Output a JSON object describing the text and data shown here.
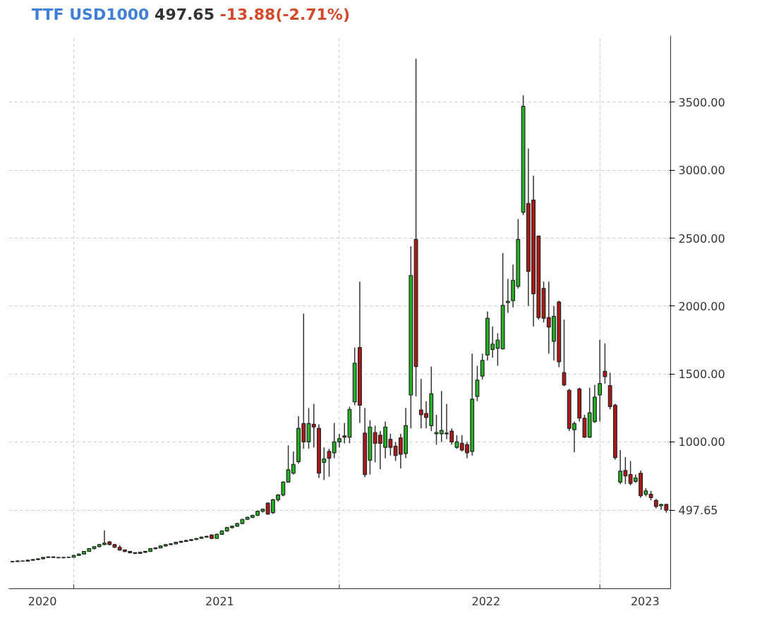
{
  "chart_data": {
    "type": "candlestick",
    "title": "TTF USD1000",
    "annotations": [
      "497.65",
      "-13.88(-2.71%)"
    ],
    "x": [
      "2020-09-21",
      "2020-09-28",
      "2020-10-05",
      "2020-10-12",
      "2020-10-19",
      "2020-10-26",
      "2020-11-02",
      "2020-11-09",
      "2020-11-16",
      "2020-11-23",
      "2020-11-30",
      "2020-12-07",
      "2020-12-14",
      "2020-12-21",
      "2020-12-28",
      "2021-01-04",
      "2021-01-11",
      "2021-01-18",
      "2021-01-25",
      "2021-02-01",
      "2021-02-08",
      "2021-02-15",
      "2021-02-22",
      "2021-03-01",
      "2021-03-08",
      "2021-03-15",
      "2021-03-22",
      "2021-03-29",
      "2021-04-05",
      "2021-04-12",
      "2021-04-19",
      "2021-04-26",
      "2021-05-03",
      "2021-05-10",
      "2021-05-17",
      "2021-05-24",
      "2021-05-31",
      "2021-06-07",
      "2021-06-14",
      "2021-06-21",
      "2021-06-28",
      "2021-07-05",
      "2021-07-12",
      "2021-07-19",
      "2021-07-26",
      "2021-08-02",
      "2021-08-09",
      "2021-08-16",
      "2021-08-23",
      "2021-08-30",
      "2021-09-06",
      "2021-09-13",
      "2021-09-20",
      "2021-09-27",
      "2021-10-04",
      "2021-10-11",
      "2021-10-18",
      "2021-10-25",
      "2021-11-01",
      "2021-11-08",
      "2021-11-15",
      "2021-11-22",
      "2021-11-29",
      "2021-12-06",
      "2021-12-13",
      "2021-12-20",
      "2021-12-27",
      "2022-01-03",
      "2022-01-10",
      "2022-01-17",
      "2022-01-24",
      "2022-01-31",
      "2022-02-07",
      "2022-02-14",
      "2022-02-21",
      "2022-02-28",
      "2022-03-07",
      "2022-03-14",
      "2022-03-21",
      "2022-03-28",
      "2022-04-04",
      "2022-04-11",
      "2022-04-18",
      "2022-04-25",
      "2022-05-02",
      "2022-05-09",
      "2022-05-16",
      "2022-05-23",
      "2022-05-30",
      "2022-06-06",
      "2022-06-13",
      "2022-06-20",
      "2022-06-27",
      "2022-07-04",
      "2022-07-11",
      "2022-07-18",
      "2022-07-25",
      "2022-08-01",
      "2022-08-08",
      "2022-08-15",
      "2022-08-22",
      "2022-08-29",
      "2022-09-05",
      "2022-09-12",
      "2022-09-19",
      "2022-09-26",
      "2022-10-03",
      "2022-10-10",
      "2022-10-17",
      "2022-10-24",
      "2022-10-31",
      "2022-11-07",
      "2022-11-14",
      "2022-11-21",
      "2022-11-28",
      "2022-12-05",
      "2022-12-12",
      "2022-12-19",
      "2022-12-26",
      "2023-01-02",
      "2023-01-09",
      "2023-01-16",
      "2023-01-23",
      "2023-01-30",
      "2023-02-06",
      "2023-02-13",
      "2023-02-20",
      "2023-02-27",
      "2023-03-06"
    ],
    "ohlc": [
      [
        118,
        124,
        114,
        120
      ],
      [
        120,
        128,
        117,
        125
      ],
      [
        125,
        127,
        119,
        123
      ],
      [
        123,
        133,
        121,
        130
      ],
      [
        130,
        138,
        128,
        135
      ],
      [
        135,
        143,
        132,
        140
      ],
      [
        140,
        153,
        138,
        150
      ],
      [
        150,
        158,
        147,
        155
      ],
      [
        155,
        157,
        146,
        150
      ],
      [
        150,
        152,
        144,
        148
      ],
      [
        148,
        153,
        145,
        150
      ],
      [
        150,
        155,
        147,
        152
      ],
      [
        152,
        168,
        150,
        165
      ],
      [
        165,
        178,
        162,
        175
      ],
      [
        175,
        198,
        172,
        195
      ],
      [
        195,
        218,
        192,
        215
      ],
      [
        215,
        233,
        210,
        230
      ],
      [
        230,
        248,
        226,
        245
      ],
      [
        245,
        350,
        240,
        255
      ],
      [
        265,
        272,
        240,
        245
      ],
      [
        245,
        250,
        220,
        225
      ],
      [
        225,
        240,
        200,
        205
      ],
      [
        205,
        210,
        190,
        195
      ],
      [
        195,
        198,
        180,
        185
      ],
      [
        185,
        188,
        175,
        180
      ],
      [
        180,
        192,
        178,
        188
      ],
      [
        188,
        199,
        185,
        195
      ],
      [
        195,
        218,
        192,
        215
      ],
      [
        215,
        225,
        210,
        220
      ],
      [
        220,
        238,
        218,
        235
      ],
      [
        235,
        248,
        230,
        245
      ],
      [
        245,
        255,
        240,
        250
      ],
      [
        250,
        266,
        247,
        262
      ],
      [
        262,
        272,
        258,
        268
      ],
      [
        268,
        279,
        264,
        275
      ],
      [
        275,
        286,
        271,
        282
      ],
      [
        282,
        294,
        278,
        290
      ],
      [
        290,
        304,
        286,
        300
      ],
      [
        300,
        310,
        296,
        305
      ],
      [
        315,
        320,
        285,
        290
      ],
      [
        290,
        325,
        288,
        320
      ],
      [
        320,
        350,
        316,
        345
      ],
      [
        345,
        375,
        340,
        370
      ],
      [
        370,
        385,
        362,
        380
      ],
      [
        380,
        405,
        376,
        400
      ],
      [
        400,
        435,
        395,
        430
      ],
      [
        430,
        450,
        425,
        445
      ],
      [
        445,
        465,
        440,
        460
      ],
      [
        460,
        495,
        455,
        490
      ],
      [
        490,
        510,
        480,
        505
      ],
      [
        550,
        555,
        465,
        470
      ],
      [
        480,
        580,
        470,
        575
      ],
      [
        575,
        615,
        560,
        610
      ],
      [
        610,
        710,
        600,
        705
      ],
      [
        705,
        975,
        700,
        795
      ],
      [
        770,
        930,
        760,
        835
      ],
      [
        855,
        1190,
        840,
        1100
      ],
      [
        1135,
        1945,
        950,
        1000
      ],
      [
        1000,
        1250,
        950,
        1135
      ],
      [
        1130,
        1280,
        960,
        1110
      ],
      [
        1100,
        1130,
        735,
        770
      ],
      [
        850,
        960,
        720,
        875
      ],
      [
        930,
        950,
        745,
        880
      ],
      [
        920,
        1140,
        880,
        1000
      ],
      [
        1000,
        1060,
        960,
        1025
      ],
      [
        1045,
        1140,
        990,
        1035
      ],
      [
        1035,
        1260,
        990,
        1240
      ],
      [
        1295,
        1695,
        1270,
        1580
      ],
      [
        1695,
        2180,
        1140,
        1270
      ],
      [
        1065,
        1250,
        740,
        760
      ],
      [
        865,
        1160,
        760,
        1110
      ],
      [
        1070,
        1120,
        850,
        990
      ],
      [
        1050,
        1080,
        800,
        990
      ],
      [
        960,
        1150,
        880,
        1110
      ],
      [
        1020,
        1060,
        900,
        960
      ],
      [
        970,
        1000,
        860,
        900
      ],
      [
        1030,
        1060,
        805,
        910
      ],
      [
        915,
        1250,
        880,
        1120
      ],
      [
        1345,
        2440,
        1100,
        2225
      ],
      [
        2490,
        3820,
        1335,
        1555
      ],
      [
        1235,
        1465,
        1100,
        1200
      ],
      [
        1210,
        1300,
        1100,
        1180
      ],
      [
        1120,
        1555,
        1080,
        1355
      ],
      [
        1060,
        1200,
        980,
        1070
      ],
      [
        1060,
        1375,
        1000,
        1085
      ],
      [
        1065,
        1280,
        1020,
        1060
      ],
      [
        1080,
        1100,
        980,
        1000
      ],
      [
        960,
        1050,
        950,
        1000
      ],
      [
        990,
        1050,
        930,
        940
      ],
      [
        980,
        1000,
        880,
        920
      ],
      [
        930,
        1650,
        900,
        1315
      ],
      [
        1335,
        1560,
        1300,
        1455
      ],
      [
        1485,
        1650,
        1460,
        1600
      ],
      [
        1640,
        1960,
        1600,
        1910
      ],
      [
        1680,
        1850,
        1620,
        1720
      ],
      [
        1690,
        1800,
        1560,
        1750
      ],
      [
        1685,
        2390,
        1680,
        2005
      ],
      [
        2025,
        2200,
        1950,
        2035
      ],
      [
        2040,
        2305,
        1990,
        2190
      ],
      [
        2145,
        2640,
        2130,
        2490
      ],
      [
        2690,
        3550,
        2670,
        3470
      ],
      [
        2755,
        3160,
        2000,
        2255
      ],
      [
        2780,
        2960,
        1850,
        2090
      ],
      [
        2515,
        2520,
        1900,
        1915
      ],
      [
        2130,
        2180,
        1880,
        1910
      ],
      [
        1915,
        2180,
        1650,
        1845
      ],
      [
        1740,
        2000,
        1600,
        1925
      ],
      [
        2030,
        2040,
        1550,
        1590
      ],
      [
        1510,
        1900,
        1410,
        1420
      ],
      [
        1380,
        1390,
        1080,
        1100
      ],
      [
        1090,
        1150,
        925,
        1135
      ],
      [
        1390,
        1400,
        1150,
        1175
      ],
      [
        1175,
        1200,
        1030,
        1035
      ],
      [
        1035,
        1400,
        1030,
        1215
      ],
      [
        1150,
        1420,
        1140,
        1330
      ],
      [
        1345,
        1750,
        1150,
        1430
      ],
      [
        1520,
        1725,
        1430,
        1480
      ],
      [
        1415,
        1510,
        1240,
        1260
      ],
      [
        1270,
        1280,
        870,
        885
      ],
      [
        705,
        940,
        690,
        785
      ],
      [
        790,
        890,
        690,
        750
      ],
      [
        760,
        860,
        680,
        695
      ],
      [
        710,
        760,
        700,
        735
      ],
      [
        770,
        790,
        590,
        605
      ],
      [
        615,
        660,
        600,
        640
      ],
      [
        615,
        640,
        570,
        590
      ],
      [
        570,
        580,
        510,
        525
      ],
      [
        530,
        545,
        500,
        540
      ],
      [
        540,
        545,
        480,
        497.65
      ]
    ],
    "xlim": [
      "2020-09-16",
      "2023-03-12"
    ],
    "xticks": [
      {
        "value": "2020-11-01",
        "label": "2020"
      },
      {
        "value": "2020-12-14",
        "label": null
      },
      {
        "value": "2021-07-02",
        "label": "2021"
      },
      {
        "value": "2021-12-13",
        "label": null
      },
      {
        "value": "2022-07-02",
        "label": "2022"
      },
      {
        "value": "2022-12-05",
        "label": null
      },
      {
        "value": "2023-02-05",
        "label": "2023"
      }
    ],
    "ylim": [
      -80,
      3990
    ],
    "yticks": [
      {
        "value": 497.65,
        "label": "497.65"
      },
      {
        "value": 1000,
        "label": "1000.00"
      },
      {
        "value": 1500,
        "label": "1500.00"
      },
      {
        "value": 2000,
        "label": "2000.00"
      },
      {
        "value": 2500,
        "label": "2500.00"
      },
      {
        "value": 3000,
        "label": "3000.00"
      },
      {
        "value": 3500,
        "label": "3500.00"
      }
    ],
    "grid": true
  }
}
